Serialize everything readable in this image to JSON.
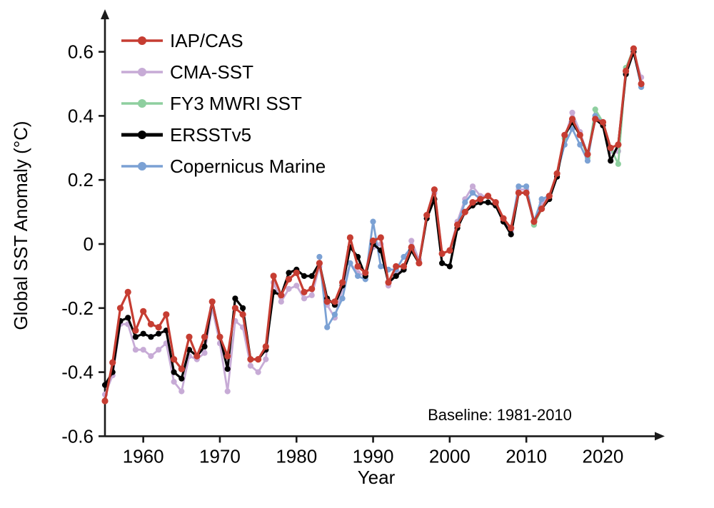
{
  "figure": {
    "background": "#ffffff",
    "annotation": "Baseline: 1981-2010",
    "annotation_color": "#8a8a8a",
    "axis_color": "#1a1a1a"
  },
  "chart_data": {
    "type": "line",
    "title": "",
    "xlabel": "Year",
    "ylabel": "Global SST Anomaly (°C)",
    "xlim": [
      1954,
      2027.5
    ],
    "ylim": [
      -0.6,
      0.65
    ],
    "x_ticks": [
      1960,
      1970,
      1980,
      1990,
      2000,
      2010,
      2020
    ],
    "y_ticks": [
      -0.6,
      -0.4,
      -0.2,
      0,
      0.2,
      0.4,
      0.6
    ],
    "grid": false,
    "legend_position": "top-left",
    "annotation": "Baseline: 1981-2010",
    "series": [
      {
        "name": "IAP/CAS",
        "color": "#c63d32",
        "start_year": 1955,
        "values": [
          -0.49,
          -0.37,
          -0.2,
          -0.15,
          -0.27,
          -0.21,
          -0.25,
          -0.26,
          -0.22,
          -0.36,
          -0.39,
          -0.29,
          -0.35,
          -0.29,
          -0.18,
          -0.29,
          -0.35,
          -0.2,
          -0.22,
          -0.36,
          -0.36,
          -0.32,
          -0.1,
          -0.16,
          -0.11,
          -0.09,
          -0.15,
          -0.14,
          -0.06,
          -0.18,
          -0.18,
          -0.12,
          0.02,
          -0.07,
          -0.09,
          0.01,
          0.02,
          -0.12,
          -0.07,
          -0.07,
          -0.01,
          -0.06,
          0.09,
          0.17,
          -0.03,
          -0.02,
          0.06,
          0.1,
          0.13,
          0.14,
          0.15,
          0.13,
          0.08,
          0.05,
          0.16,
          0.16,
          0.07,
          0.11,
          0.15,
          0.22,
          0.34,
          0.39,
          0.34,
          0.28,
          0.39,
          0.38,
          0.3,
          0.31,
          0.54,
          0.61,
          0.5
        ]
      },
      {
        "name": "CMA-SST",
        "color": "#c7abd6",
        "start_year": 1955,
        "values": [
          -0.47,
          -0.41,
          -0.25,
          -0.25,
          -0.33,
          -0.33,
          -0.35,
          -0.33,
          -0.31,
          -0.43,
          -0.46,
          -0.35,
          -0.36,
          -0.34,
          -0.2,
          -0.31,
          -0.46,
          -0.24,
          -0.26,
          -0.38,
          -0.4,
          -0.36,
          -0.12,
          -0.18,
          -0.14,
          -0.13,
          -0.17,
          -0.16,
          -0.07,
          -0.19,
          -0.23,
          -0.14,
          -0.06,
          -0.09,
          -0.1,
          -0.01,
          0.0,
          -0.13,
          -0.09,
          -0.08,
          0.01,
          -0.05,
          0.08,
          0.16,
          -0.03,
          -0.02,
          0.07,
          0.14,
          0.18,
          0.15,
          0.15,
          0.13,
          0.07,
          0.04,
          0.17,
          0.17,
          0.06,
          0.13,
          0.15,
          0.21,
          0.33,
          0.41,
          0.35,
          0.28,
          0.4,
          0.38,
          0.29,
          0.29,
          0.54,
          0.6,
          0.52
        ]
      },
      {
        "name": "FY3 MWRI SST",
        "color": "#8ecf9f",
        "start_year": 2011,
        "values": [
          0.06,
          0.11,
          0.15,
          0.22,
          0.33,
          0.39,
          0.34,
          0.27,
          0.42,
          0.38,
          0.3,
          0.25,
          0.55,
          0.61,
          0.49
        ]
      },
      {
        "name": "ERSSTv5",
        "color": "#000000",
        "start_year": 1955,
        "values": [
          -0.44,
          -0.4,
          -0.24,
          -0.23,
          -0.29,
          -0.28,
          -0.29,
          -0.28,
          -0.27,
          -0.4,
          -0.42,
          -0.33,
          -0.35,
          -0.32,
          -0.18,
          -0.29,
          -0.39,
          -0.17,
          -0.2,
          -0.36,
          -0.36,
          -0.33,
          -0.15,
          -0.16,
          -0.09,
          -0.08,
          -0.1,
          -0.1,
          -0.06,
          -0.17,
          -0.19,
          -0.13,
          -0.01,
          -0.04,
          -0.1,
          0.0,
          -0.02,
          -0.12,
          -0.1,
          -0.08,
          -0.02,
          -0.06,
          0.08,
          0.14,
          -0.06,
          -0.07,
          0.05,
          0.1,
          0.12,
          0.13,
          0.13,
          0.12,
          0.07,
          0.03,
          0.16,
          0.16,
          0.07,
          0.11,
          0.14,
          0.21,
          0.34,
          0.38,
          0.34,
          0.28,
          0.39,
          0.37,
          0.26,
          0.31,
          0.53,
          0.6,
          0.5
        ]
      },
      {
        "name": "Copernicus Marine",
        "color": "#7ba1d4",
        "start_year": 1983,
        "values": [
          -0.04,
          -0.26,
          -0.22,
          -0.17,
          -0.06,
          -0.1,
          -0.11,
          0.07,
          -0.07,
          -0.08,
          -0.08,
          -0.04,
          -0.01,
          -0.06,
          0.09,
          0.17,
          -0.03,
          -0.02,
          0.06,
          0.13,
          0.16,
          0.14,
          0.15,
          0.13,
          0.08,
          0.05,
          0.18,
          0.18,
          0.07,
          0.14,
          0.15,
          0.22,
          0.31,
          0.36,
          0.31,
          0.26,
          0.4,
          0.38,
          0.3,
          0.31,
          0.53,
          0.6,
          0.49
        ]
      }
    ]
  }
}
